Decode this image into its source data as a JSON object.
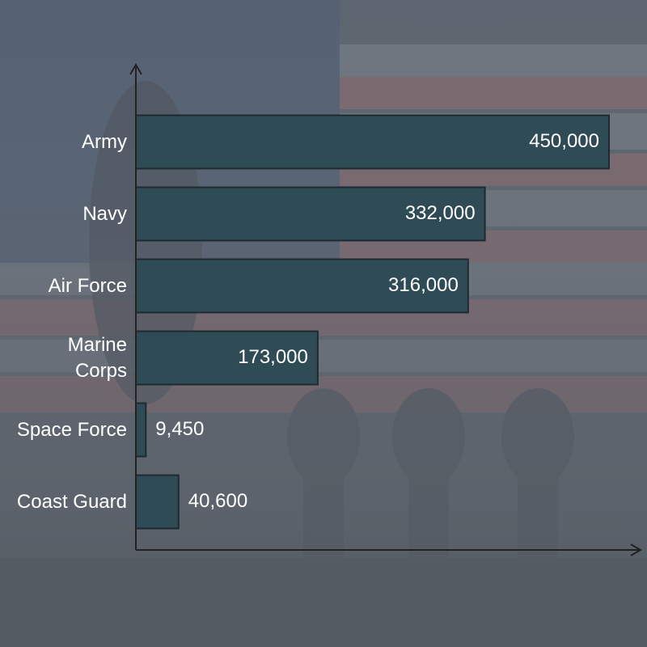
{
  "chart_data": {
    "type": "bar",
    "orientation": "horizontal",
    "categories": [
      "Army",
      "Navy",
      "Air Force",
      "Marine\nCorps",
      "Space Force",
      "Coast Guard"
    ],
    "values": [
      450000,
      332000,
      316000,
      173000,
      9450,
      40600
    ],
    "value_labels": [
      "450,000",
      "332,000",
      "316,000",
      "173,000",
      "9,450",
      "40,600"
    ],
    "color": "#2f4b55",
    "xlim": [
      0,
      480000
    ]
  }
}
